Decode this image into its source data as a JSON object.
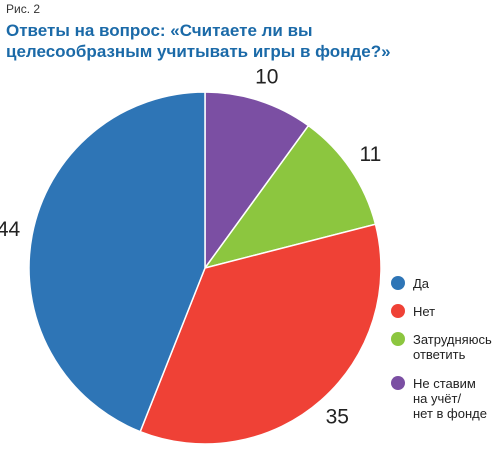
{
  "figure_label": "Рис. 2",
  "title_lines": [
    "Ответы на вопрос: «Считаете ли вы",
    "целесообразным учитывать игры в фонде?»"
  ],
  "chart_data": {
    "type": "pie",
    "title": "Ответы на вопрос: «Считаете ли вы целесообразным учитывать игры в фонде?»",
    "start_angle_deg": 0,
    "direction": "clockwise",
    "slices": [
      {
        "label": "Не ставим на учёт/ нет в фонде",
        "value": 10,
        "color": "#7b4fa3"
      },
      {
        "label": "Затрудняюсь ответить",
        "value": 11,
        "color": "#8cc63f"
      },
      {
        "label": "Нет",
        "value": 35,
        "color": "#ef4136"
      },
      {
        "label": "Да",
        "value": 44,
        "color": "#2e75b6"
      }
    ],
    "legend": [
      {
        "lines": [
          "Да"
        ],
        "color": "#2e75b6"
      },
      {
        "lines": [
          "Нет"
        ],
        "color": "#ef4136"
      },
      {
        "lines": [
          "Затрудняюсь",
          "ответить"
        ],
        "color": "#8cc63f"
      },
      {
        "lines": [
          "Не ставим",
          "на учёт/",
          "нет в фонде"
        ],
        "color": "#7b4fa3"
      }
    ],
    "legend_position": "right"
  }
}
